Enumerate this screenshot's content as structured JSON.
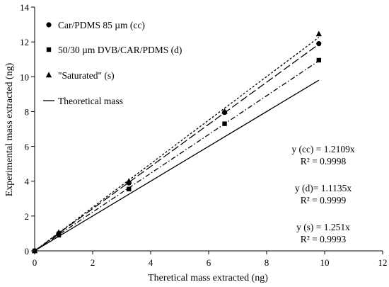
{
  "chart_data": {
    "type": "scatter",
    "title": "",
    "xlabel": "Theretical mass extracted (ng)",
    "ylabel": "Experimental mass extracted (ng)",
    "xlim": [
      0,
      12
    ],
    "ylim": [
      0,
      14
    ],
    "xticks": [
      0,
      2,
      4,
      6,
      8,
      10,
      12
    ],
    "yticks": [
      0,
      2,
      4,
      6,
      8,
      10,
      12,
      14
    ],
    "grid": false,
    "legend_position": "top-left",
    "series": [
      {
        "name": "Car/PDMS 85 µm (cc)",
        "marker": "circle",
        "points": [
          [
            0,
            0
          ],
          [
            0.83,
            1.0
          ],
          [
            3.25,
            3.9
          ],
          [
            6.55,
            7.95
          ],
          [
            9.8,
            11.9
          ]
        ],
        "trendline": {
          "style": "long-dash",
          "slope": 1.2109,
          "x_end": 9.8
        }
      },
      {
        "name": "50/30 µm DVB/CAR/PDMS (d)",
        "marker": "square",
        "points": [
          [
            0,
            0
          ],
          [
            0.83,
            0.9
          ],
          [
            3.25,
            3.55
          ],
          [
            6.55,
            7.3
          ],
          [
            9.8,
            10.95
          ]
        ],
        "trendline": {
          "style": "dash-dot",
          "slope": 1.1135,
          "x_end": 9.8
        }
      },
      {
        "name": "\"Saturated\" (s)",
        "marker": "triangle",
        "points": [
          [
            0,
            0
          ],
          [
            0.83,
            1.05
          ],
          [
            3.25,
            4.0
          ],
          [
            6.55,
            8.0
          ],
          [
            9.8,
            12.45
          ]
        ],
        "trendline": {
          "style": "dotted",
          "slope": 1.251,
          "x_end": 9.8
        }
      },
      {
        "name": "Theoretical mass",
        "marker": "none",
        "line": {
          "style": "solid",
          "slope": 1.0,
          "x_end": 9.8
        }
      }
    ],
    "annotations": [
      {
        "line1": "y (cc) = 1.2109x",
        "line2": "R² = 0.9998"
      },
      {
        "line1": "y (d)= 1.1135x",
        "line2": "R² = 0.9999"
      },
      {
        "line1": "y (s) = 1.251x",
        "line2": "R² = 0.9993"
      }
    ]
  }
}
